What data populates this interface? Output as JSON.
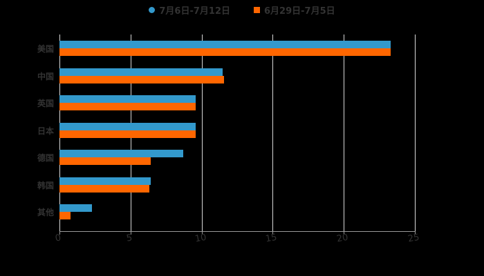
{
  "legend": [
    {
      "label": "7月6日-7月12日",
      "color": "#3399cc",
      "shape": "circle"
    },
    {
      "label": "6月29日-7月5日",
      "color": "#ff6600",
      "shape": "square"
    }
  ],
  "chart_data": {
    "type": "bar",
    "orientation": "horizontal",
    "title": "",
    "xlabel": "",
    "ylabel": "",
    "categories": [
      "美国",
      "中国",
      "英国",
      "日本",
      "德国",
      "韩国",
      "其他"
    ],
    "series": [
      {
        "name": "7月6日-7月12日",
        "color": "#3399cc",
        "values": [
          23.3,
          11.5,
          9.6,
          9.6,
          8.7,
          6.4,
          2.3
        ]
      },
      {
        "name": "6月29日-7月5日",
        "color": "#ff6600",
        "values": [
          23.3,
          11.6,
          9.6,
          9.6,
          6.4,
          6.3,
          0.8
        ]
      }
    ],
    "xlim": [
      0,
      25
    ],
    "xticks": [
      "0",
      "5",
      "10",
      "15",
      "20",
      "25"
    ],
    "grid": "vertical",
    "legend_position": "top"
  },
  "axis": {
    "ticks": [
      "0",
      "5",
      "10",
      "15",
      "20",
      "25"
    ]
  }
}
